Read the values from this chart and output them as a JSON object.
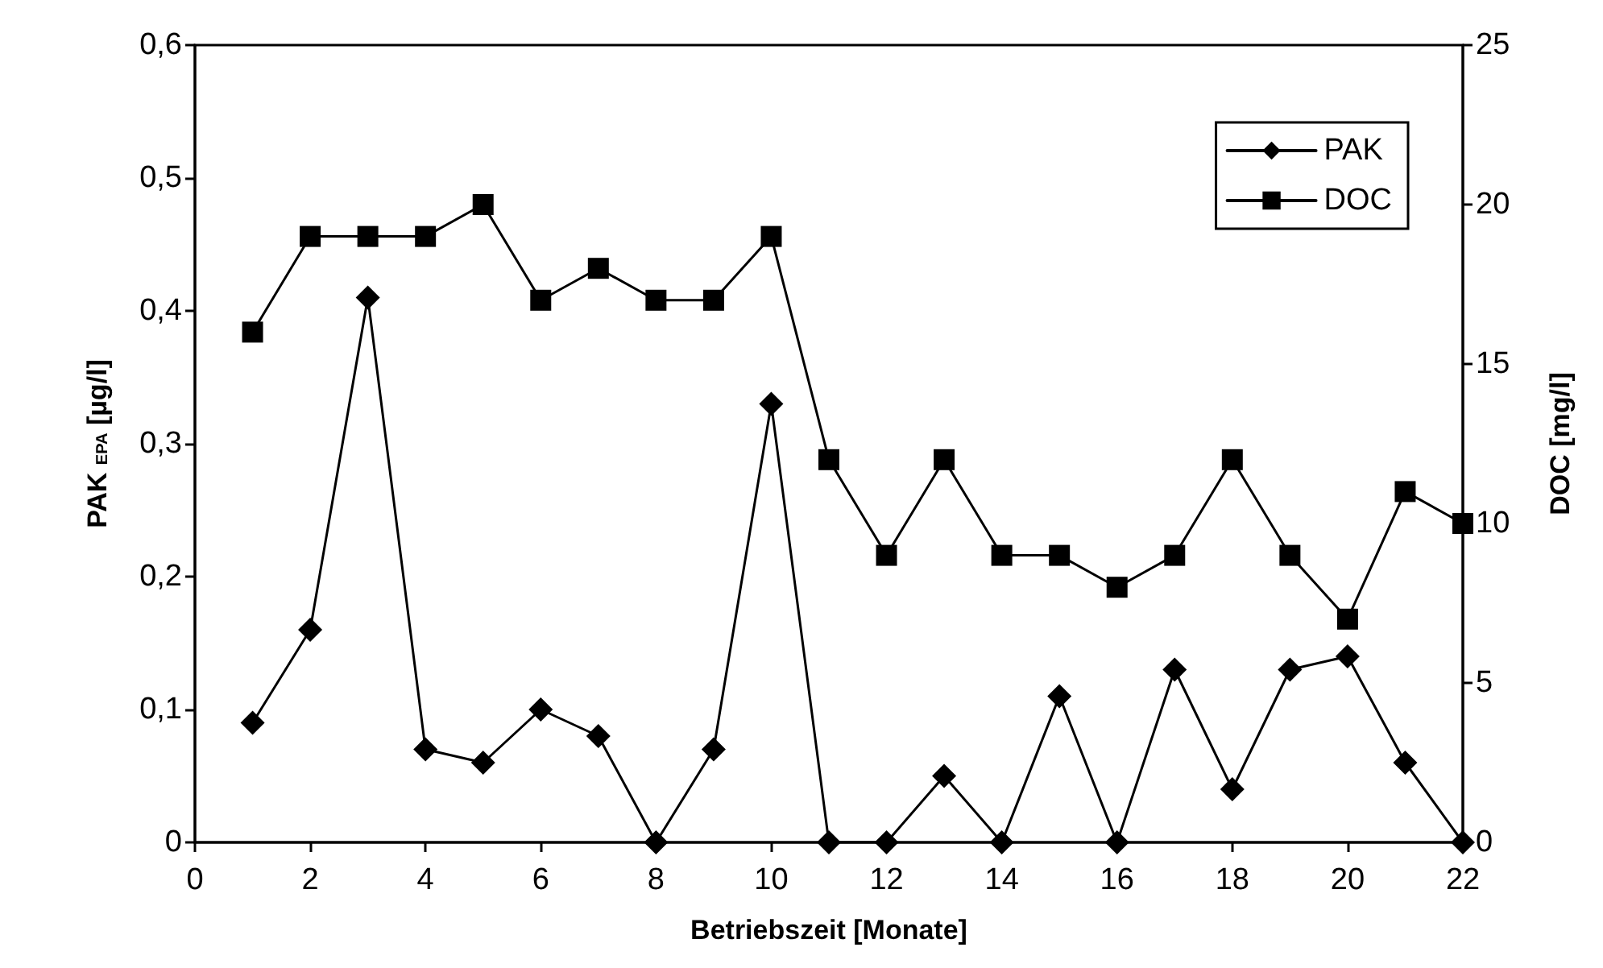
{
  "chart_data": {
    "type": "line",
    "xlabel": "Betriebszeit [Monate]",
    "ylabel": "PAK $_{EPA}$ [µg/l]",
    "y2label": "DOC [mg/l]",
    "x": [
      1,
      2,
      3,
      4,
      5,
      6,
      7,
      8,
      9,
      10,
      11,
      12,
      13,
      14,
      15,
      16,
      17,
      18,
      19,
      20,
      21,
      22
    ],
    "series": [
      {
        "name": "PAK",
        "color": "#000000",
        "marker": "diamond",
        "values": [
          0.09,
          0.16,
          0.41,
          0.07,
          0.06,
          0.1,
          0.08,
          0,
          0.07,
          0.33,
          0,
          0,
          0.05,
          0,
          0.11,
          0,
          0.13,
          0.04,
          0.13,
          0.14,
          0.06,
          0
        ]
      },
      {
        "name": "DOC",
        "color": "#000000",
        "marker": "square",
        "axis": "y2",
        "values": [
          16,
          19,
          19,
          19,
          20,
          17,
          18,
          17,
          17,
          19,
          12,
          9,
          12,
          9,
          9,
          8,
          9,
          12,
          9,
          7,
          11,
          10
        ]
      }
    ],
    "xlim": [
      0,
      22
    ],
    "xticks": [
      0,
      2,
      4,
      6,
      8,
      10,
      12,
      14,
      16,
      18,
      20,
      22
    ],
    "ylim": [
      0,
      0.6
    ],
    "yticks": [
      0,
      {
        "value": 0.1,
        "label": "0,1"
      },
      {
        "value": 0.2,
        "label": "0,2"
      },
      {
        "value": 0.3,
        "label": "0,3"
      },
      {
        "value": 0.4,
        "label": "0,4"
      },
      {
        "value": 0.5,
        "label": "0,5"
      },
      {
        "value": 0.6,
        "label": "0,6"
      }
    ],
    "y2lim": [
      0,
      25
    ],
    "y2ticks": [
      0,
      5,
      10,
      15,
      20,
      25
    ],
    "legend": "top right",
    "grid": false,
    "line_style": "solid"
  }
}
